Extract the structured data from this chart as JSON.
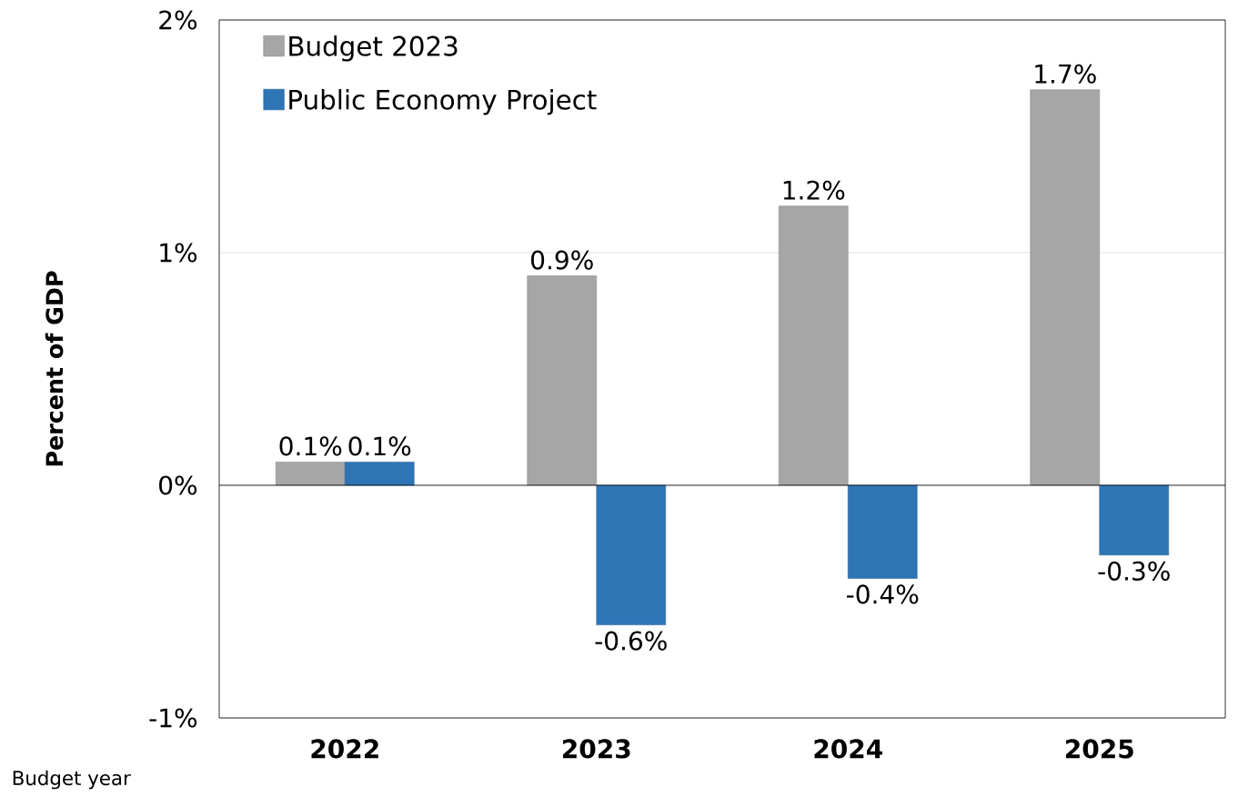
{
  "chart_data": {
    "type": "bar",
    "ylabel": "Percent of GDP",
    "categories": [
      "2022",
      "2023",
      "2024",
      "2025"
    ],
    "series": [
      {
        "name": "Budget 2023",
        "color": "#a6a6a6",
        "values": [
          0.1,
          0.9,
          1.2,
          1.7
        ],
        "value_labels": [
          "0.1%",
          "0.9%",
          "1.2%",
          "1.7%"
        ]
      },
      {
        "name": "Public Economy Project",
        "color": "#2e75b6",
        "values": [
          0.1,
          -0.6,
          -0.4,
          -0.3
        ],
        "value_labels": [
          "0.1%",
          "-0.6%",
          "-0.4%",
          "-0.3%"
        ]
      }
    ],
    "ylim": [
      -1,
      2
    ],
    "yticks": [
      {
        "value": -1,
        "label": "-1%"
      },
      {
        "value": 0,
        "label": "0%"
      },
      {
        "value": 1,
        "label": "1%"
      },
      {
        "value": 2,
        "label": "2%"
      }
    ],
    "grid": "y",
    "legend": "top left",
    "annotations": [
      "Budget year"
    ]
  }
}
